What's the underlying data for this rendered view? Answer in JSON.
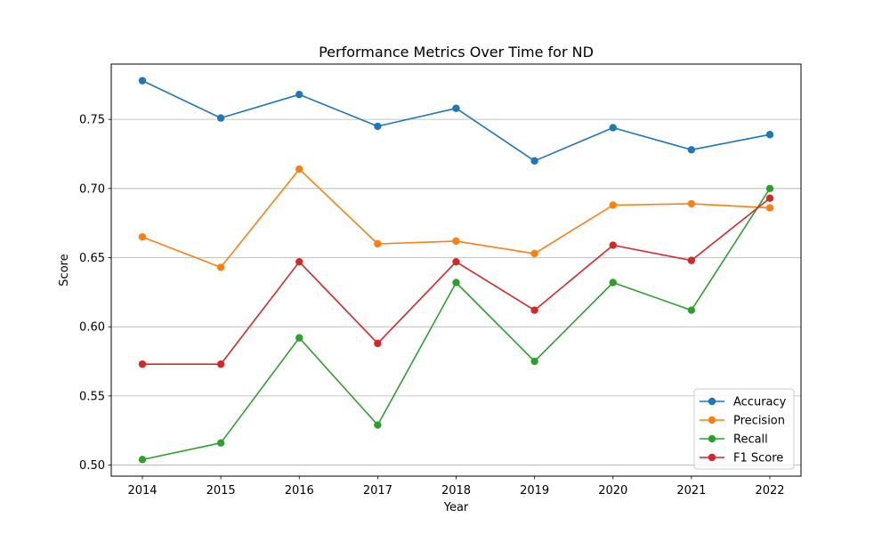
{
  "chart_data": {
    "type": "line",
    "title": "Performance Metrics Over Time for ND",
    "xlabel": "Year",
    "ylabel": "Score",
    "x": [
      "2014",
      "2015",
      "2016",
      "2017",
      "2018",
      "2019",
      "2020",
      "2021",
      "2022"
    ],
    "ylim": [
      0.492,
      0.79
    ],
    "yticks": [
      "0.50",
      "0.55",
      "0.60",
      "0.65",
      "0.70",
      "0.75"
    ],
    "grid": "horizontal",
    "legend_position": "lower-right",
    "series": [
      {
        "name": "Accuracy",
        "color": "#1f77b4",
        "values": [
          0.778,
          0.751,
          0.768,
          0.745,
          0.758,
          0.72,
          0.744,
          0.728,
          0.739
        ]
      },
      {
        "name": "Precision",
        "color": "#ff7f0e",
        "values": [
          0.665,
          0.643,
          0.714,
          0.66,
          0.662,
          0.653,
          0.688,
          0.689,
          0.686
        ]
      },
      {
        "name": "Recall",
        "color": "#2ca02c",
        "values": [
          0.504,
          0.516,
          0.592,
          0.529,
          0.632,
          0.575,
          0.632,
          0.612,
          0.7
        ]
      },
      {
        "name": "F1 Score",
        "color": "#d62728",
        "values": [
          0.573,
          0.573,
          0.647,
          0.588,
          0.647,
          0.612,
          0.659,
          0.648,
          0.693
        ]
      }
    ]
  }
}
